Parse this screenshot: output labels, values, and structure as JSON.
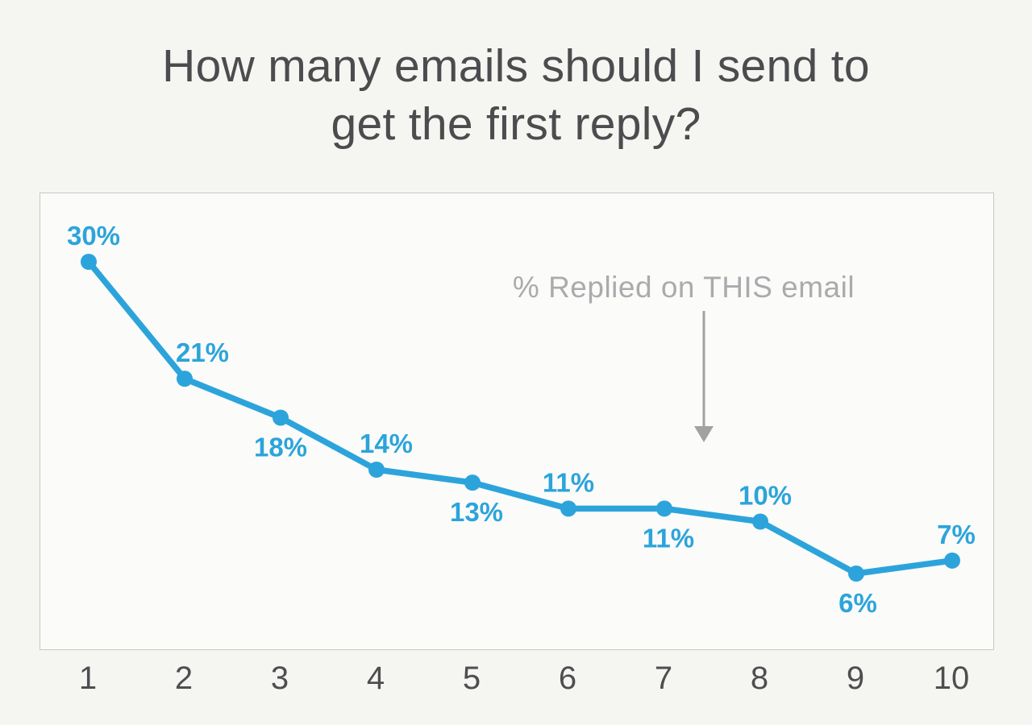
{
  "page": {
    "background": "#f5f5f2"
  },
  "title": {
    "line1": "How many emails should I send to",
    "line2": "get the first reply?",
    "color": "#4b4c4e"
  },
  "chart_data": {
    "type": "line",
    "title": "How many emails should I send to get the first reply?",
    "x_categories": [
      "1",
      "2",
      "3",
      "4",
      "5",
      "6",
      "7",
      "8",
      "9",
      "10"
    ],
    "values": [
      30,
      21,
      18,
      14,
      13,
      11,
      11,
      10,
      6,
      7
    ],
    "point_labels": [
      "30%",
      "21%",
      "18%",
      "14%",
      "13%",
      "11%",
      "11%",
      "10%",
      "6%",
      "7%"
    ],
    "label_positions": [
      "above",
      "above",
      "below",
      "above",
      "below",
      "above",
      "below",
      "above",
      "below",
      "above"
    ],
    "label_dx": [
      6,
      22,
      0,
      12,
      5,
      0,
      5,
      6,
      2,
      5
    ],
    "xlabel": "",
    "ylabel": "",
    "ylim": [
      0,
      35.3
    ],
    "grid": false,
    "legend": false,
    "line_color": "#2ca4db",
    "plot_background": "#fbfbf9",
    "plot_border_color": "#c7c7c5",
    "axis_tick_color": "#4d4e50",
    "annotation": {
      "text": "% Replied on THIS email",
      "color": "#a9abad",
      "arrow_color": "#a2a2a2",
      "arrow_direction": "down"
    }
  }
}
